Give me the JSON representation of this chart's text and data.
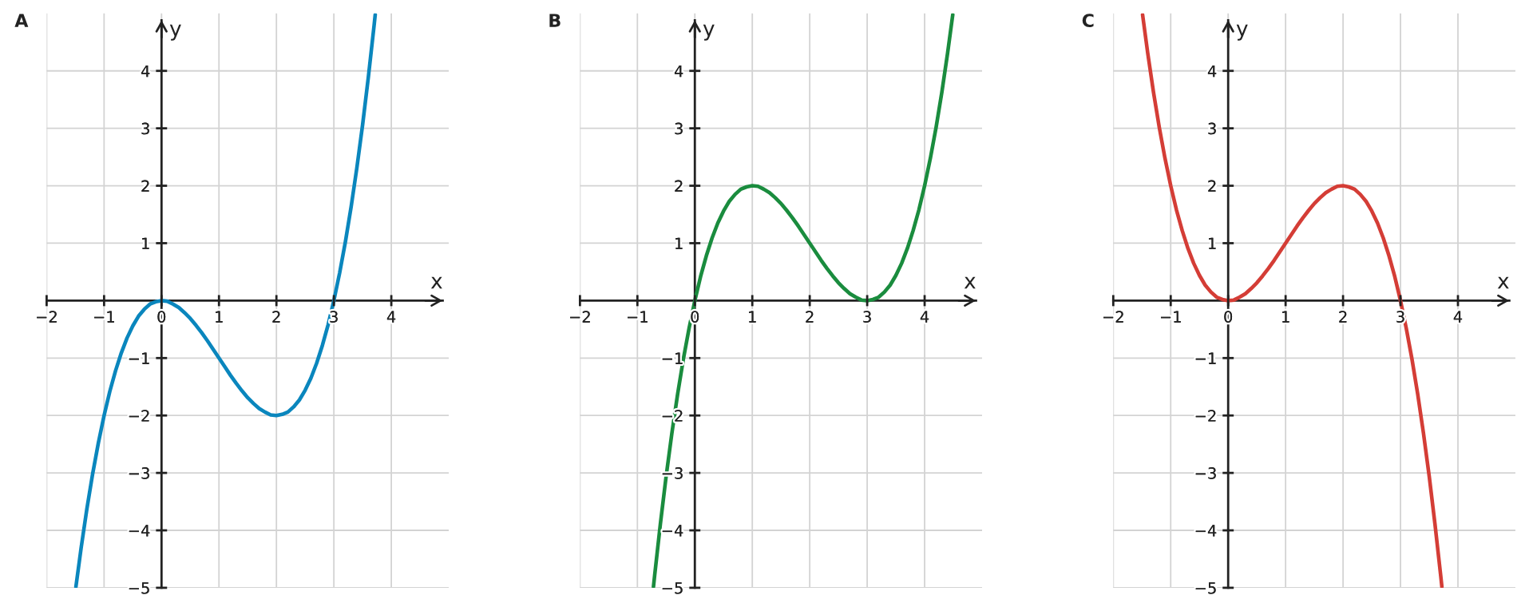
{
  "chart_data": [
    {
      "type": "line",
      "title": "A",
      "xlabel": "x",
      "ylabel": "y",
      "color": "#0a86bd",
      "x": [
        -1.49,
        -1.4,
        -1.3,
        -1.2,
        -1.1,
        -1.0,
        -0.9,
        -0.8,
        -0.7,
        -0.6,
        -0.5,
        -0.4,
        -0.3,
        -0.2,
        -0.1,
        0,
        0.1,
        0.2,
        0.3,
        0.4,
        0.5,
        0.6,
        0.7,
        0.8,
        0.9,
        1.0,
        1.1,
        1.2,
        1.3,
        1.4,
        1.5,
        1.6,
        1.7,
        1.8,
        1.9,
        2.0,
        2.1,
        2.2,
        2.3,
        2.4,
        2.5,
        2.6,
        2.7,
        2.8,
        2.9,
        3.0,
        3.1,
        3.2,
        3.3,
        3.4,
        3.5,
        3.6,
        3.7,
        3.72
      ],
      "values": [
        -4.98,
        -4.31,
        -3.63,
        -3.02,
        -2.48,
        -2.0,
        -1.58,
        -1.22,
        -0.91,
        -0.65,
        -0.44,
        -0.27,
        -0.15,
        -0.06,
        -0.02,
        0,
        -0.01,
        -0.06,
        -0.12,
        -0.21,
        -0.31,
        -0.43,
        -0.56,
        -0.7,
        -0.85,
        -1.0,
        -1.15,
        -1.3,
        -1.44,
        -1.57,
        -1.69,
        -1.79,
        -1.88,
        -1.94,
        -1.99,
        -2.0,
        -1.98,
        -1.94,
        -1.85,
        -1.73,
        -1.56,
        -1.35,
        -1.09,
        -0.78,
        -0.42,
        0,
        0.48,
        1.02,
        1.63,
        2.31,
        3.06,
        3.89,
        4.79,
        4.98
      ],
      "xlim": [
        -2,
        5
      ],
      "ylim": [
        -5,
        5
      ],
      "xticks": [
        -2,
        -1,
        0,
        1,
        2,
        3,
        4
      ],
      "yticks": [
        -5,
        -4,
        -3,
        -2,
        -1,
        1,
        2,
        3,
        4
      ],
      "grid": true
    },
    {
      "type": "line",
      "title": "B",
      "xlabel": "x",
      "ylabel": "y",
      "color": "#1a8c3e",
      "x": [
        -0.72,
        -0.7,
        -0.6,
        -0.5,
        -0.4,
        -0.3,
        -0.2,
        -0.1,
        0,
        0.1,
        0.2,
        0.3,
        0.4,
        0.5,
        0.6,
        0.7,
        0.8,
        0.9,
        1.0,
        1.1,
        1.2,
        1.3,
        1.4,
        1.5,
        1.6,
        1.7,
        1.8,
        1.9,
        2.0,
        2.1,
        2.2,
        2.3,
        2.4,
        2.5,
        2.6,
        2.7,
        2.8,
        2.9,
        3.0,
        3.1,
        3.2,
        3.3,
        3.4,
        3.5,
        3.6,
        3.7,
        3.8,
        3.9,
        4.0,
        4.1,
        4.2,
        4.3,
        4.4,
        4.49
      ],
      "values": [
        -4.98,
        -4.79,
        -3.89,
        -3.06,
        -2.31,
        -1.63,
        -1.02,
        -0.48,
        0,
        0.42,
        0.78,
        1.09,
        1.35,
        1.56,
        1.73,
        1.85,
        1.94,
        1.98,
        2.0,
        1.99,
        1.94,
        1.88,
        1.79,
        1.69,
        1.57,
        1.44,
        1.3,
        1.15,
        1.0,
        0.85,
        0.7,
        0.56,
        0.43,
        0.31,
        0.21,
        0.12,
        0.06,
        0.01,
        0,
        0.02,
        0.06,
        0.15,
        0.27,
        0.44,
        0.65,
        0.91,
        1.22,
        1.58,
        2.0,
        2.48,
        3.02,
        3.63,
        4.31,
        4.98
      ],
      "xlim": [
        -2,
        5
      ],
      "ylim": [
        -5,
        5
      ],
      "xticks": [
        -2,
        -1,
        0,
        1,
        2,
        3,
        4
      ],
      "yticks": [
        -5,
        -4,
        -3,
        -2,
        -1,
        1,
        2,
        3,
        4
      ],
      "grid": true
    },
    {
      "type": "line",
      "title": "C",
      "xlabel": "x",
      "ylabel": "y",
      "color": "#d43d36",
      "x": [
        -1.49,
        -1.4,
        -1.3,
        -1.2,
        -1.1,
        -1.0,
        -0.9,
        -0.8,
        -0.7,
        -0.6,
        -0.5,
        -0.4,
        -0.3,
        -0.2,
        -0.1,
        0,
        0.1,
        0.2,
        0.3,
        0.4,
        0.5,
        0.6,
        0.7,
        0.8,
        0.9,
        1.0,
        1.1,
        1.2,
        1.3,
        1.4,
        1.5,
        1.6,
        1.7,
        1.8,
        1.9,
        2.0,
        2.1,
        2.2,
        2.3,
        2.4,
        2.5,
        2.6,
        2.7,
        2.8,
        2.9,
        3.0,
        3.1,
        3.2,
        3.3,
        3.4,
        3.5,
        3.6,
        3.7,
        3.72
      ],
      "values": [
        4.98,
        4.31,
        3.63,
        3.02,
        2.48,
        2.0,
        1.58,
        1.22,
        0.91,
        0.65,
        0.44,
        0.27,
        0.15,
        0.06,
        0.02,
        0,
        0.01,
        0.06,
        0.12,
        0.21,
        0.31,
        0.43,
        0.56,
        0.7,
        0.85,
        1.0,
        1.15,
        1.3,
        1.44,
        1.57,
        1.69,
        1.79,
        1.88,
        1.94,
        1.99,
        2.0,
        1.98,
        1.94,
        1.85,
        1.73,
        1.56,
        1.35,
        1.09,
        0.78,
        0.42,
        0,
        -0.48,
        -1.02,
        -1.63,
        -2.31,
        -3.06,
        -3.89,
        -4.79,
        -4.98
      ],
      "xlim": [
        -2,
        5
      ],
      "ylim": [
        -5,
        5
      ],
      "xticks": [
        -2,
        -1,
        0,
        1,
        2,
        3,
        4
      ],
      "yticks": [
        -5,
        -4,
        -3,
        -2,
        -1,
        1,
        2,
        3,
        4
      ],
      "grid": true
    }
  ]
}
